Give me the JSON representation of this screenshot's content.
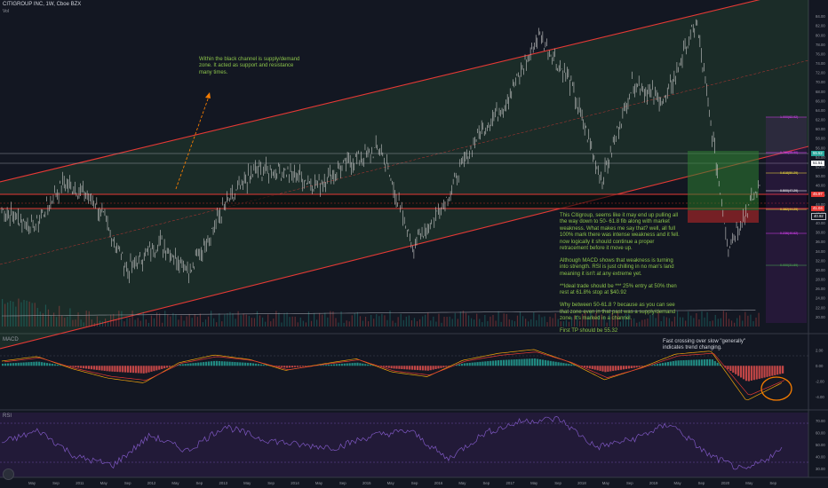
{
  "header": {
    "title": "CITIGROUP INC, 1W, Cboe BZX",
    "volume_label": "Vol"
  },
  "panes": {
    "macd_label": "MACD",
    "rsi_label": "RSI"
  },
  "annotations": {
    "channel_note": "Within the black channel is supply/demand zone. It acted as support and resistance many times.",
    "analysis": [
      "This Citigroup, seems like it may end up pulling all the way down to 50- 61.8 fib along with market weakness. What makes me say that? well, all full 100% mark there was intense weakness and it fell. now logically it should continue a proper retracement before it move up.",
      "Although MACD shows that weakness is turning into strength. RSI is just chilling in no man's land meaning it isn't at any extreme yet.",
      "**Ideal trade should be *** 25% entry at 50% then rest at 61.8% stop at $40.92",
      "Why between 50-61.8 ? because as you can see that zone even in that past was a supply/demand zone. It's marked in a channel.",
      "First TP should be 55.32"
    ],
    "macd_note": "Fast crossing over slow \"generally\" indicates trend changing."
  },
  "price_tags": {
    "upper": "55.52",
    "current": "51.51",
    "level_a": "45.97",
    "level_b": "41.04",
    "level_c": "40.92"
  },
  "fib_labels": [
    "1.000(62.92)",
    "0.786(55.90)",
    "0.618(50.29)",
    "0.500(47.29)",
    "0.382(44.29)",
    "0.236(40.62)",
    "0.000(31.89)"
  ],
  "colors": {
    "background": "#131722",
    "channel_fill": "#4caf50",
    "channel_line": "#e53935",
    "annotation_text": "#8bc34a",
    "macd_fast": "#f0a30a",
    "macd_slow": "#e53935",
    "rsi_line": "#7e57c2",
    "fib_line": "#e040fb",
    "highlight_circle": "#f57c00"
  },
  "chart_data": [
    {
      "type": "line",
      "title": "CITIGROUP INC, 1W, Cboe BZX",
      "series": [
        {
          "name": "",
          "x": [
            "2010",
            "2010-06",
            "2011-02",
            "2011-06",
            "2011-10",
            "2012",
            "2012-06",
            "2013",
            "2013-06",
            "2014",
            "2014-06",
            "2015",
            "2015-06",
            "2016-02",
            "2016-06",
            "2017",
            "2017-06",
            "2018-01",
            "2018-06",
            "2018-12",
            "2019-06",
            "2019-09",
            "2020-01",
            "2020-03",
            "2020-05"
          ],
          "values": [
            43,
            39,
            49,
            44,
            30,
            36,
            30,
            43,
            51,
            51,
            48,
            53,
            56,
            35,
            44,
            58,
            66,
            80,
            70,
            49,
            70,
            66,
            83,
            35,
            48
          ]
        }
      ],
      "ylim": [
        18,
        86
      ],
      "y_ticks": [
        20,
        22,
        24,
        26,
        28,
        30,
        32,
        34,
        36,
        38,
        40,
        42,
        44,
        46,
        48,
        50,
        52,
        54,
        56,
        58,
        60,
        62,
        64,
        66,
        68,
        70,
        72,
        74,
        76,
        78,
        80,
        82,
        84
      ],
      "x_ticks": [
        "May",
        "Sep",
        "2011",
        "May",
        "Sep",
        "2012",
        "May",
        "Sep",
        "2013",
        "May",
        "Sep",
        "2014",
        "May",
        "Sep",
        "2015",
        "May",
        "Sep",
        "2016",
        "May",
        "Sep",
        "2017",
        "May",
        "Sep",
        "2018",
        "May",
        "Sep",
        "2019",
        "May",
        "Sep",
        "2020",
        "May",
        "Sep"
      ]
    },
    {
      "type": "bar",
      "title": "MACD",
      "y_ticks": [
        "2.00",
        "0.00",
        "-2.00",
        "-4.00"
      ],
      "ylim": [
        -5,
        3
      ],
      "series": [
        {
          "name": "",
          "values": [
            0.6,
            1.2,
            -0.4,
            -1.6,
            -2.2,
            0.4,
            1.4,
            0.8,
            -0.6,
            0.2,
            0.9,
            -0.8,
            -1.4,
            0.7,
            1.6,
            2.1,
            0.5,
            -1.8,
            -0.3,
            1.5,
            1.9,
            -4.5,
            -2.2
          ]
        }
      ]
    },
    {
      "type": "line",
      "title": "RSI",
      "y_ticks": [
        "70.00",
        "60.00",
        "50.00",
        "40.00",
        "30.00"
      ],
      "ylim": [
        25,
        75
      ],
      "series": [
        {
          "name": "",
          "values": [
            52,
            62,
            40,
            33,
            58,
            45,
            66,
            55,
            50,
            48,
            58,
            62,
            38,
            60,
            70,
            72,
            48,
            55,
            68,
            42,
            28,
            46
          ]
        }
      ]
    }
  ]
}
